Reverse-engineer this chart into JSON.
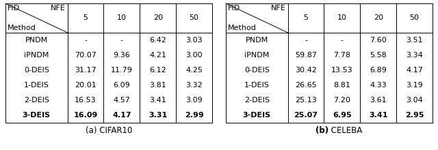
{
  "table_a": {
    "title_parts": [
      [
        "(a) CIFAR10",
        "normal"
      ]
    ],
    "nfe": [
      "5",
      "10",
      "20",
      "50"
    ],
    "methods": [
      "PNDM",
      "iPNDM",
      "0-DEIS",
      "1-DEIS",
      "2-DEIS",
      "3-DEIS"
    ],
    "data": [
      [
        "-",
        "-",
        "6.42",
        "3.03"
      ],
      [
        "70.07",
        "9.36",
        "4.21",
        "3.00"
      ],
      [
        "31.17",
        "11.79",
        "6.12",
        "4.25"
      ],
      [
        "20.01",
        "6.09",
        "3.81",
        "3.32"
      ],
      [
        "16.53",
        "4.57",
        "3.41",
        "3.09"
      ],
      [
        "16.09",
        "4.17",
        "3.31",
        "2.99"
      ]
    ],
    "bold_row": 5
  },
  "table_b": {
    "title_normal": " CELEBA",
    "title_bold": "(b)",
    "nfe": [
      "5",
      "10",
      "20",
      "50"
    ],
    "methods": [
      "PNDM",
      "iPNDM",
      "0-DEIS",
      "1-DEIS",
      "2-DEIS",
      "3-DEIS"
    ],
    "data": [
      [
        "-",
        "-",
        "7.60",
        "3.51"
      ],
      [
        "59.87",
        "7.78",
        "5.58",
        "3.34"
      ],
      [
        "30.42",
        "13.53",
        "6.89",
        "4.17"
      ],
      [
        "26.65",
        "8.81",
        "4.33",
        "3.19"
      ],
      [
        "25.13",
        "7.20",
        "3.61",
        "3.04"
      ],
      [
        "25.07",
        "6.95",
        "3.41",
        "2.95"
      ]
    ],
    "bold_row": 5
  },
  "header_label_fid": "FID",
  "header_label_nfe": "NFE",
  "header_label_method": "Method",
  "bg_color": "#ffffff",
  "line_color": "#000000",
  "fontsize": 8.0,
  "title_fontsize": 8.5
}
